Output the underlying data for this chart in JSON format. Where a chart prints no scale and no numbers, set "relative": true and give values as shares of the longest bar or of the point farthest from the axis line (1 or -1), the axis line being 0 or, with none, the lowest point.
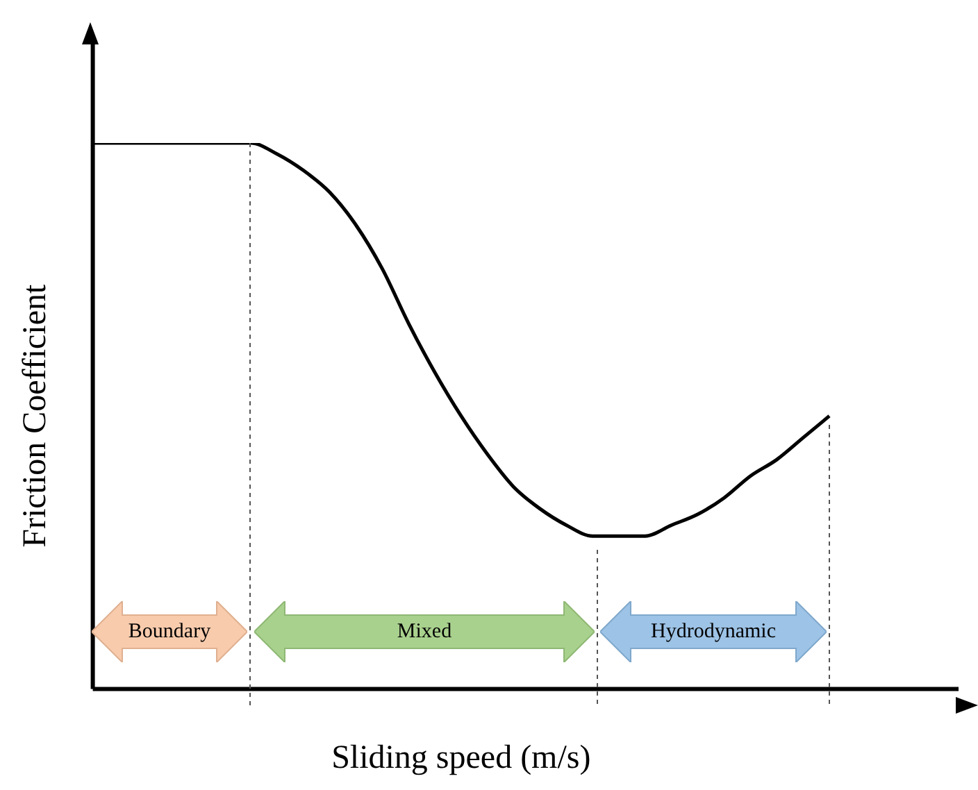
{
  "chart_data": {
    "type": "line",
    "relative": true,
    "xlabel": "Sliding speed (m/s)",
    "ylabel": "Friction Coefficient",
    "categories": [
      null,
      null,
      null,
      null,
      null,
      null,
      null,
      null,
      null,
      null,
      null,
      null,
      null,
      null,
      null,
      null,
      null,
      null,
      null,
      null,
      null,
      null,
      null,
      null,
      null,
      null,
      null,
      null,
      null
    ],
    "series": [
      {
        "color": "#000000",
        "values": [
          1.0,
          1.0,
          1.0,
          1.0,
          1.0,
          1.0,
          1.0,
          0.98,
          0.95,
          0.91,
          0.85,
          0.77,
          0.67,
          0.58,
          0.5,
          0.43,
          0.37,
          0.33,
          0.3,
          0.28,
          0.28,
          0.28,
          0.3,
          0.32,
          0.35,
          0.39,
          0.42,
          0.46,
          0.5
        ]
      }
    ],
    "annotations": [
      "Boundary",
      "Mixed",
      "Hydrodynamic"
    ],
    "grid": false,
    "legend": false,
    "marker": "none",
    "line_style": "solid"
  }
}
